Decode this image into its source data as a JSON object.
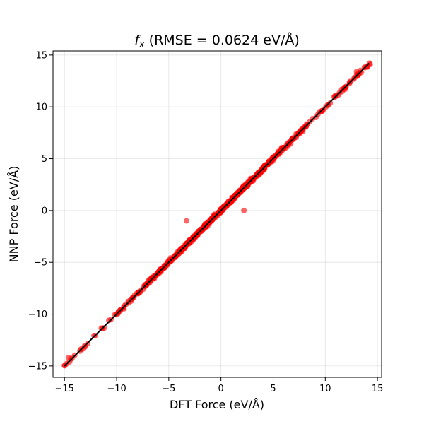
{
  "chart_data": {
    "type": "scatter",
    "title": "RMSE = 0.0624 eV/Å",
    "title_symbol": "f",
    "title_subscript": "x",
    "title_full": "f_x (RMSE = 0.0624 eV/Å)",
    "xlabel": "DFT Force (eV/Å)",
    "ylabel": "NNP Force (eV/Å)",
    "xlim": [
      -16.1,
      15.4
    ],
    "ylim": [
      -16.1,
      15.4
    ],
    "xticks": [
      -15,
      -10,
      -5,
      0,
      5,
      10,
      15
    ],
    "yticks": [
      -15,
      -10,
      -5,
      0,
      5,
      10,
      15
    ],
    "xtick_labels": [
      "−15",
      "−10",
      "−5",
      "0",
      "5",
      "10",
      "15"
    ],
    "ytick_labels": [
      "−15",
      "−10",
      "−5",
      "0",
      "5",
      "10",
      "15"
    ],
    "grid": true,
    "point_color": "#ff0000",
    "point_opacity": 0.6,
    "line_color": "#000000",
    "parity_line": {
      "x": [
        -15,
        14.2
      ],
      "y": [
        -15,
        14.2
      ]
    },
    "outliers": [
      {
        "x": -3.3,
        "y": -1.0
      },
      {
        "x": 2.2,
        "y": 0.0
      },
      {
        "x": 13.0,
        "y": 13.4
      },
      {
        "x": -14.6,
        "y": -14.2
      },
      {
        "x": 11.9,
        "y": 11.7
      }
    ],
    "n_points": 700,
    "x_range_points": [
      -15.0,
      14.3
    ]
  }
}
